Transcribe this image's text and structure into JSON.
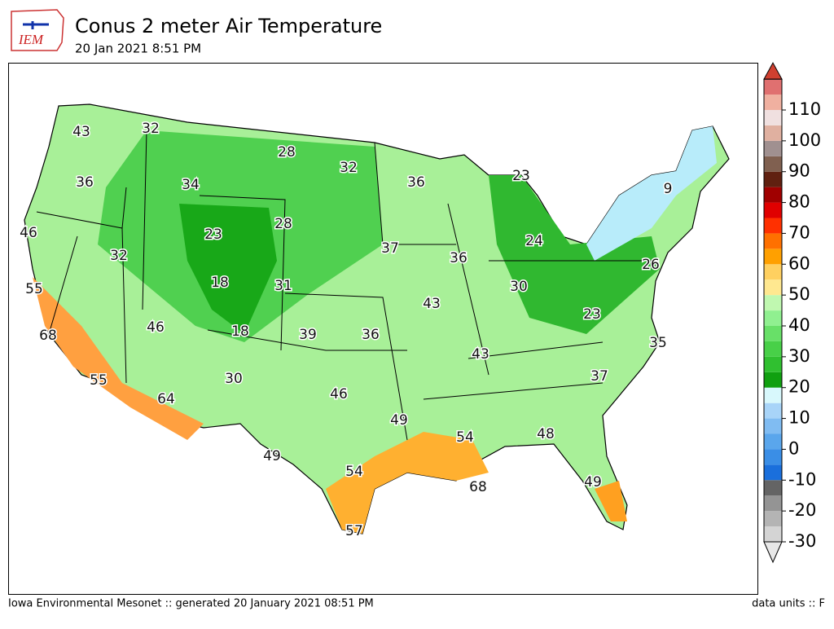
{
  "header": {
    "title": "Conus 2 meter Air Temperature",
    "subtitle": "20 Jan 2021 8:51 PM",
    "logo_text": "IEM"
  },
  "map": {
    "labels": [
      43,
      32,
      28,
      32,
      36,
      23,
      36,
      34,
      46,
      23,
      28,
      32,
      37,
      36,
      24,
      9,
      26,
      55,
      18,
      31,
      30,
      43,
      68,
      46,
      18,
      39,
      36,
      43,
      23,
      35,
      55,
      30,
      64,
      46,
      37,
      49,
      48,
      54,
      49,
      54,
      68,
      49,
      57
    ]
  },
  "colorbar": {
    "ticks": [
      -30,
      -20,
      -10,
      0,
      10,
      20,
      30,
      40,
      50,
      60,
      70,
      80,
      90,
      100,
      110
    ],
    "colors": [
      "#d4d4d4",
      "#b4b4b4",
      "#949494",
      "#646464",
      "#1a6fdc",
      "#3a8ee6",
      "#5aa6ec",
      "#80bcf2",
      "#a8d4f8",
      "#d8f8fc",
      "#10a010",
      "#30c030",
      "#48d048",
      "#68e068",
      "#90f090",
      "#c0f8b0",
      "#ffe890",
      "#ffd060",
      "#ffa000",
      "#ff7000",
      "#ff3000",
      "#e00000",
      "#a00000",
      "#602010",
      "#806050",
      "#a09090",
      "#e0b0a0",
      "#f0e0e0",
      "#f0b0a0",
      "#e07070"
    ]
  },
  "footer": {
    "left": "Iowa Environmental Mesonet :: generated 20 January 2021 08:51 PM",
    "right": "data units :: F"
  }
}
